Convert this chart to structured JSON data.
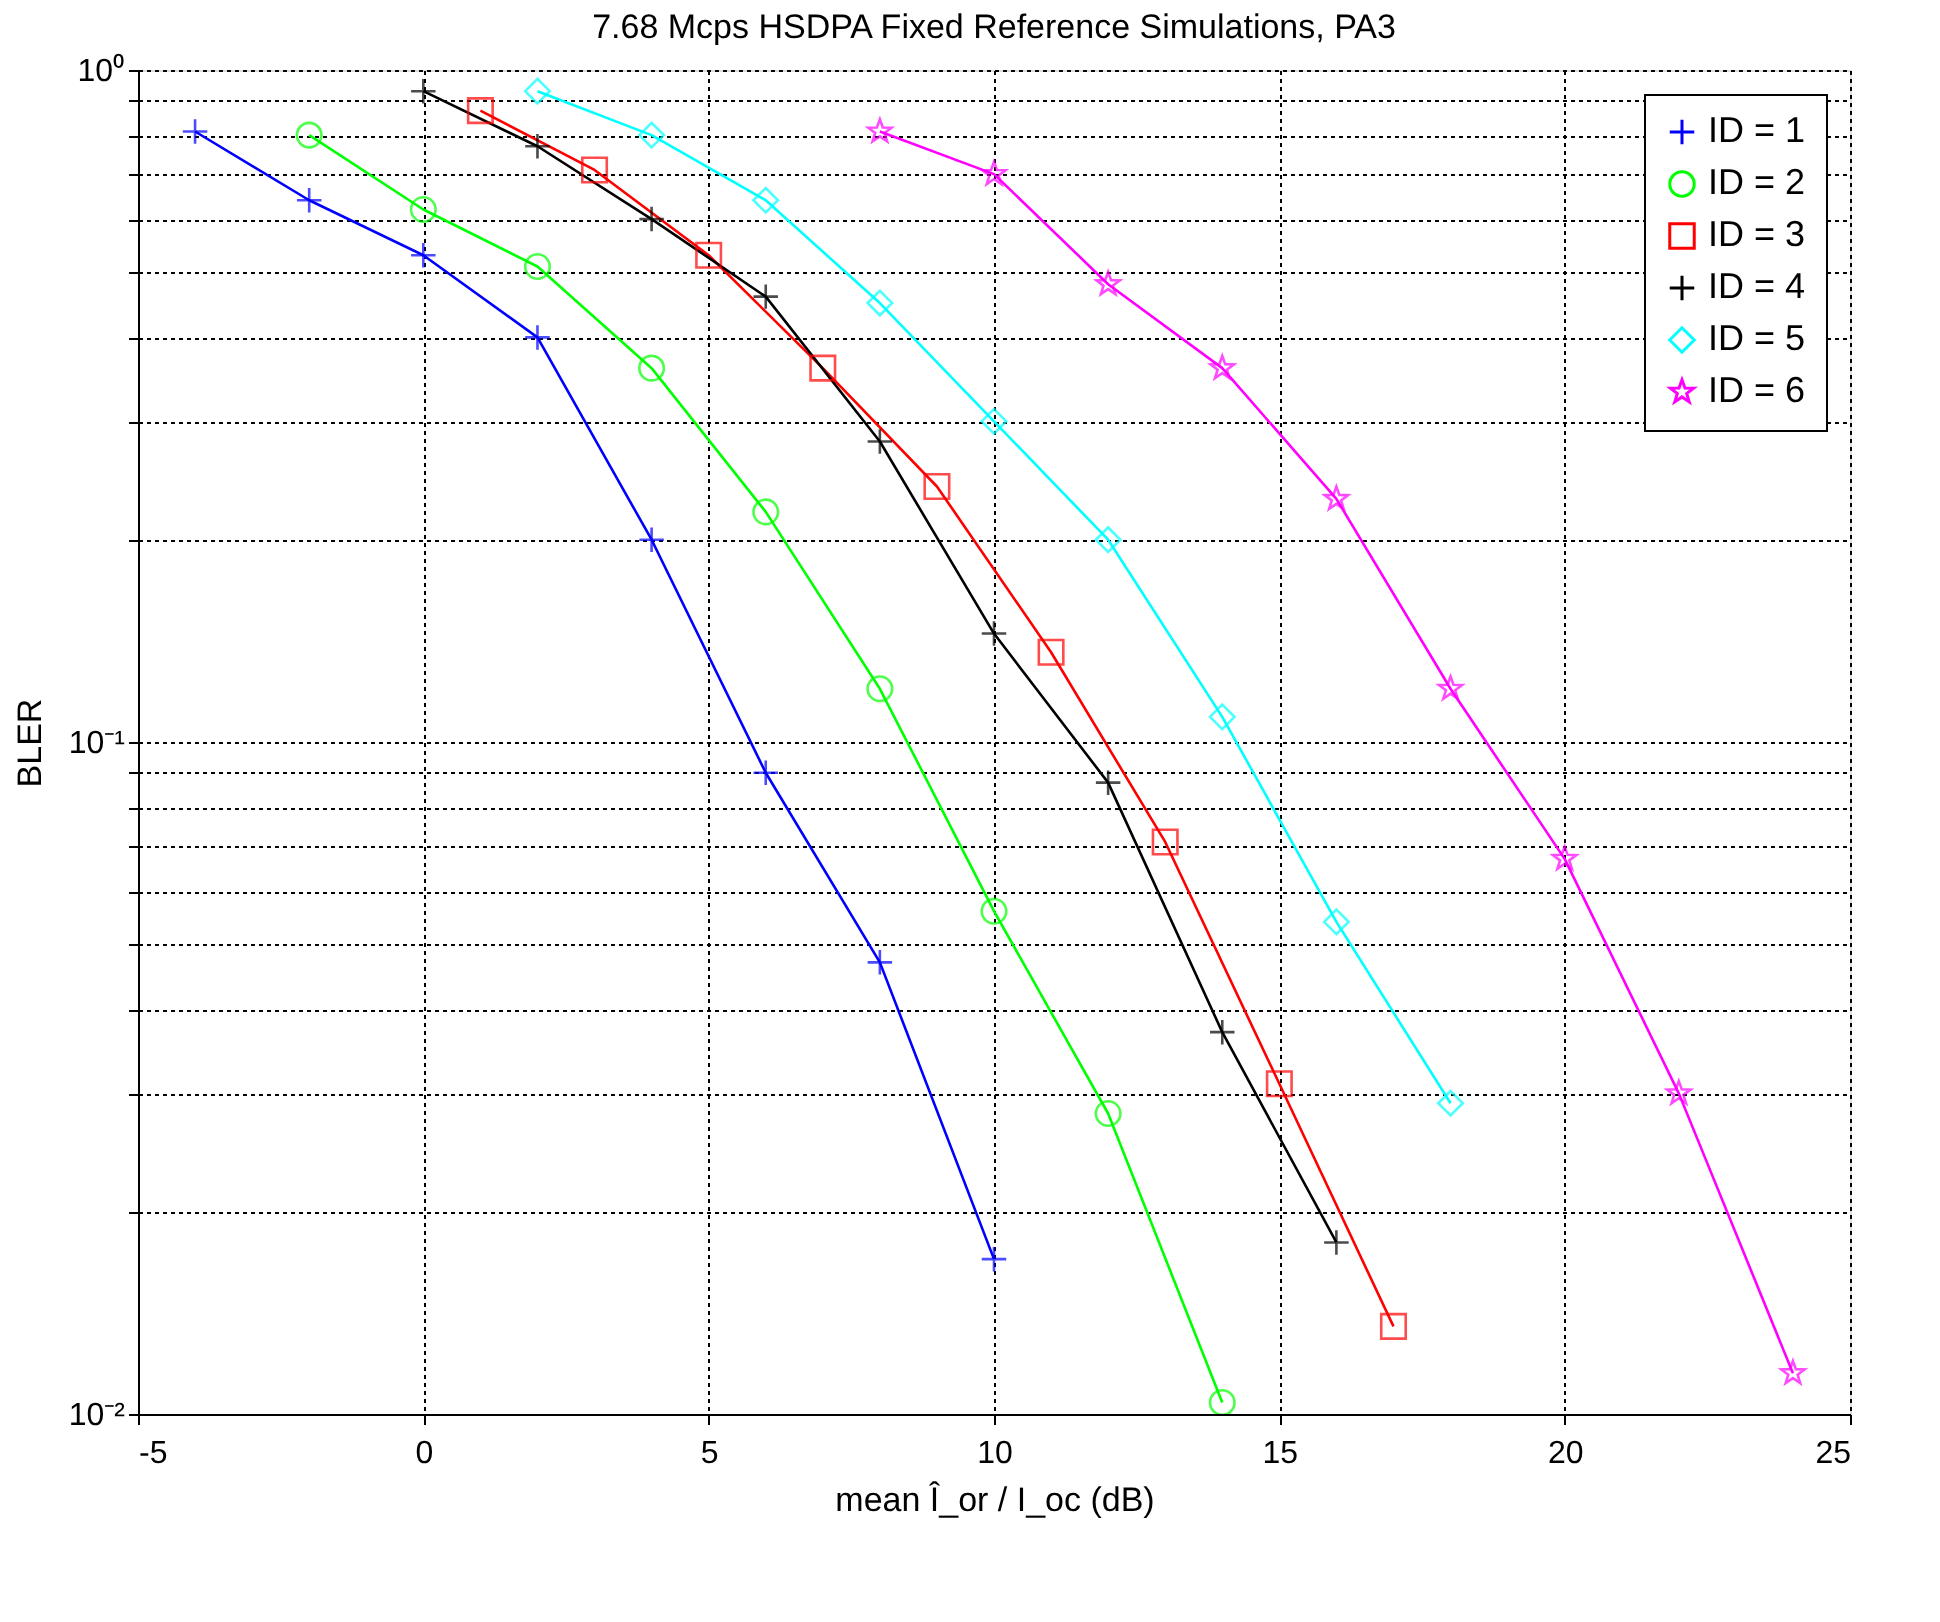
{
  "chart_data": {
    "type": "line",
    "title": "7.68 Mcps HSDPA Fixed Reference Simulations, PA3",
    "xlabel": "mean Î_or / I_oc (dB)",
    "ylabel": "BLER",
    "log": "y",
    "grid": true,
    "legend": "top right",
    "xlim": [
      -5,
      25
    ],
    "xticks": [
      -5,
      0,
      5,
      10,
      15,
      20,
      25
    ],
    "ylim": [
      0.01,
      1
    ],
    "yticks": [
      {
        "value": 0.01,
        "label": "10⁻²"
      },
      {
        "value": 0.02,
        "label": null
      },
      {
        "value": 0.03,
        "label": null
      },
      {
        "value": 0.04,
        "label": null
      },
      {
        "value": 0.05,
        "label": null
      },
      {
        "value": 0.06,
        "label": null
      },
      {
        "value": 0.07,
        "label": null
      },
      {
        "value": 0.08,
        "label": null
      },
      {
        "value": 0.09,
        "label": null
      },
      {
        "value": 0.1,
        "label": "10⁻¹"
      },
      {
        "value": 0.2,
        "label": null
      },
      {
        "value": 0.3,
        "label": null
      },
      {
        "value": 0.4,
        "label": null
      },
      {
        "value": 0.5,
        "label": null
      },
      {
        "value": 0.6,
        "label": null
      },
      {
        "value": 0.7,
        "label": null
      },
      {
        "value": 0.8,
        "label": null
      },
      {
        "value": 0.9,
        "label": null
      },
      {
        "value": 1,
        "label": "10⁰"
      }
    ],
    "series": [
      {
        "name": "ID = 1",
        "color": "#0000ff",
        "marker": "cross",
        "x": [
          -4,
          -2,
          0,
          2,
          4,
          6,
          8,
          10
        ],
        "values": [
          0.81,
          0.64,
          0.53,
          0.4,
          0.2,
          0.09,
          0.047,
          0.017
        ]
      },
      {
        "name": "ID = 2",
        "color": "#00ff00",
        "marker": "circle",
        "x": [
          -2,
          0,
          2,
          4,
          6,
          8,
          10,
          12,
          14
        ],
        "values": [
          0.8,
          0.62,
          0.51,
          0.36,
          0.22,
          0.12,
          0.056,
          0.028,
          0.0104
        ]
      },
      {
        "name": "ID = 3",
        "color": "#ff0000",
        "marker": "square",
        "x": [
          1,
          3,
          5,
          7,
          9,
          11,
          13,
          15,
          17
        ],
        "values": [
          0.87,
          0.71,
          0.53,
          0.36,
          0.24,
          0.136,
          0.071,
          0.031,
          0.0135
        ]
      },
      {
        "name": "ID = 4",
        "color": "#000000",
        "marker": "cross",
        "x": [
          0,
          2,
          4,
          6,
          8,
          10,
          12,
          14,
          16
        ],
        "values": [
          0.93,
          0.77,
          0.6,
          0.46,
          0.28,
          0.145,
          0.087,
          0.037,
          0.018
        ]
      },
      {
        "name": "ID = 5",
        "color": "#00ffff",
        "marker": "diamond",
        "x": [
          2,
          4,
          6,
          8,
          10,
          12,
          14,
          16,
          18
        ],
        "values": [
          0.93,
          0.8,
          0.64,
          0.45,
          0.3,
          0.2,
          0.109,
          0.054,
          0.029
        ]
      },
      {
        "name": "ID = 6",
        "color": "#ff00ff",
        "marker": "star",
        "x": [
          8,
          10,
          12,
          14,
          16,
          18,
          20,
          22,
          24
        ],
        "values": [
          0.81,
          0.7,
          0.48,
          0.36,
          0.23,
          0.12,
          0.067,
          0.03,
          0.0115
        ]
      }
    ]
  }
}
